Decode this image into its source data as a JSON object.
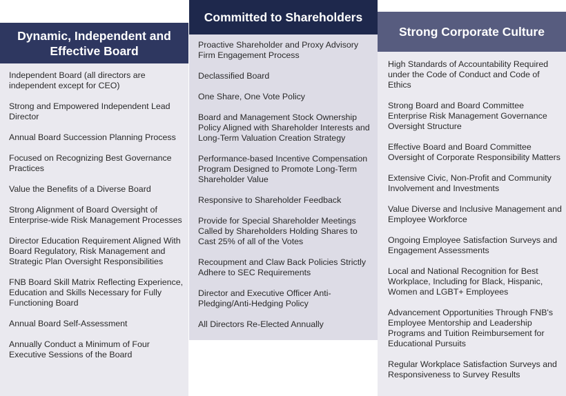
{
  "columns": [
    {
      "title": "Dynamic, Independent and Effective Board",
      "items": [
        "Independent Board (all directors are independent except for CEO)",
        "Strong and Empowered Independent Lead Director",
        "Annual Board Succession Planning Process",
        "Focused on Recognizing Best Governance Practices",
        "Value the Benefits of a Diverse Board",
        "Strong Alignment of Board Oversight of Enterprise-wide Risk Management Processes",
        "Director Education Requirement Aligned With Board Regulatory, Risk Management and Strategic Plan Oversight Responsibilities",
        "FNB Board Skill Matrix Reflecting Experience, Education and Skills Necessary for Fully Functioning Board",
        "Annual Board Self-Assessment",
        "Annually Conduct a Minimum of Four Executive Sessions of the Board"
      ]
    },
    {
      "title": "Committed to Shareholders",
      "items": [
        "Proactive Shareholder and Proxy Advisory Firm Engagement Process",
        "Declassified Board",
        "One Share, One Vote Policy",
        "Board and Management Stock Ownership Policy Aligned with Shareholder Interests and Long-Term Valuation Creation Strategy",
        "Performance-based Incentive Compensation Program Designed to Promote Long-Term Shareholder Value",
        "Responsive to Shareholder Feedback",
        "Provide for Special Shareholder Meetings Called by Shareholders Holding Shares to Cast 25% of all of the Votes",
        "Recoupment and Claw Back Policies Strictly Adhere to SEC Requirements",
        "Director and Executive Officer Anti-Pledging/Anti-Hedging Policy",
        "All Directors Re-Elected Annually"
      ]
    },
    {
      "title": "Strong Corporate Culture",
      "items": [
        "High Standards of Accountability Required under the Code of Conduct and Code of Ethics",
        "Strong Board and Board Committee Enterprise Risk Management Governance Oversight Structure",
        "Effective Board and Board Committee Oversight of Corporate Responsibility Matters",
        "Extensive Civic, Non-Profit and Community Involvement and Investments",
        "Value Diverse and Inclusive Management and Employee Workforce",
        "Ongoing Employee Satisfaction Surveys and Engagement Assessments",
        "Local and National Recognition for Best Workplace, Including for Black, Hispanic, Women and LGBT+ Employees",
        "Advancement Opportunities Through FNB's Employee Mentorship and Leadership Programs and Tuition Reimbursement for Educational Pursuits",
        "Regular Workplace Satisfaction Surveys and Responsiveness to Survey Results"
      ]
    }
  ]
}
